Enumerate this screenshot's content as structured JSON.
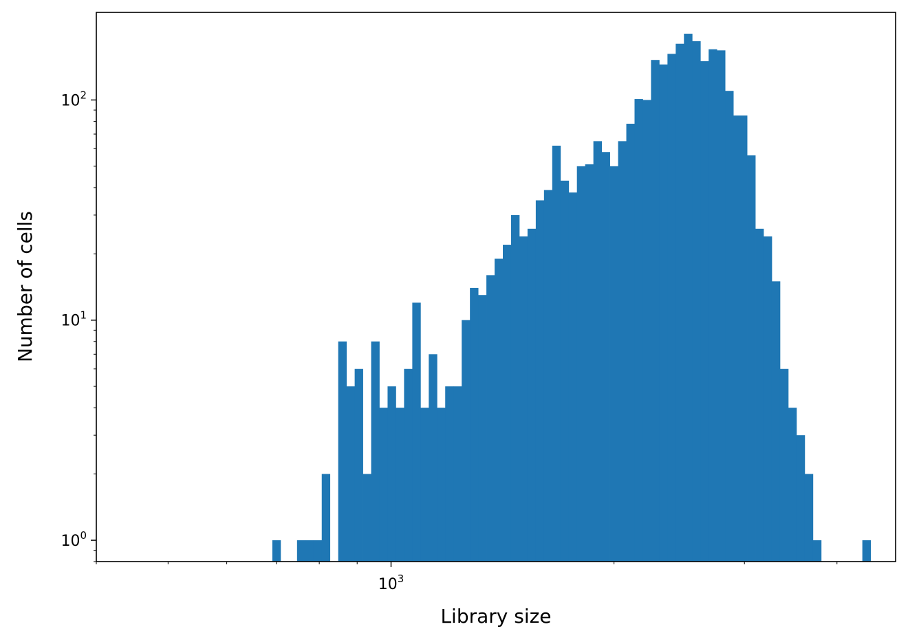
{
  "chart_data": {
    "type": "bar",
    "xlabel": "Library size",
    "ylabel": "Number of cells",
    "xscale": "log",
    "yscale": "log",
    "xlim": [
      400,
      4800
    ],
    "ylim": [
      0.8,
      250
    ],
    "grid": false,
    "color": "#1f77b4",
    "x_ticks": [
      {
        "base": "10",
        "exp": "3",
        "value": 1000
      }
    ],
    "y_ticks": [
      {
        "base": "10",
        "exp": "0",
        "value": 1
      },
      {
        "base": "10",
        "exp": "1",
        "value": 10
      },
      {
        "base": "10",
        "exp": "2",
        "value": 100
      }
    ],
    "bin_edges": [
      691.4,
      709.3,
      727.7,
      746.6,
      765.9,
      785.8,
      806.2,
      827.0,
      848.5,
      870.5,
      893.1,
      916.2,
      940.0,
      964.3,
      989.3,
      1014.9,
      1041.3,
      1068.3,
      1095.9,
      1124.4,
      1153.5,
      1183.4,
      1214.1,
      1245.6,
      1277.9,
      1311.0,
      1345.0,
      1379.8,
      1415.6,
      1452.3,
      1489.9,
      1528.5,
      1568.2,
      1608.8,
      1650.5,
      1693.3,
      1737.2,
      1782.2,
      1828.4,
      1875.8,
      1924.4,
      1974.3,
      2025.5,
      2078.0,
      2131.9,
      2187.1,
      2243.8,
      2302.0,
      2361.7,
      2422.9,
      2485.7,
      2550.1,
      2616.2,
      2684.1,
      2753.6,
      2825.0,
      2898.3,
      3024.8,
      3103.2,
      3183.6,
      3266.2,
      3350.8,
      3437.7,
      3526.8,
      3618.2,
      3712.0,
      3808.3,
      3907.0,
      4008.3,
      4112.2,
      4218.8,
      4328.2,
      4440.4
    ],
    "counts": [
      1,
      0,
      0,
      1,
      1,
      1,
      2,
      0,
      8,
      5,
      6,
      2,
      8,
      4,
      5,
      4,
      6,
      12,
      4,
      7,
      4,
      5,
      5,
      10,
      14,
      13,
      16,
      19,
      22,
      30,
      24,
      26,
      35,
      39,
      62,
      43,
      38,
      50,
      51,
      65,
      58,
      50,
      65,
      78,
      101,
      100,
      152,
      145,
      162,
      180,
      200,
      185,
      150,
      170,
      168,
      110,
      85,
      56,
      26,
      24,
      15,
      6,
      4,
      3,
      2,
      1,
      0,
      0,
      0,
      0,
      0,
      1
    ]
  }
}
